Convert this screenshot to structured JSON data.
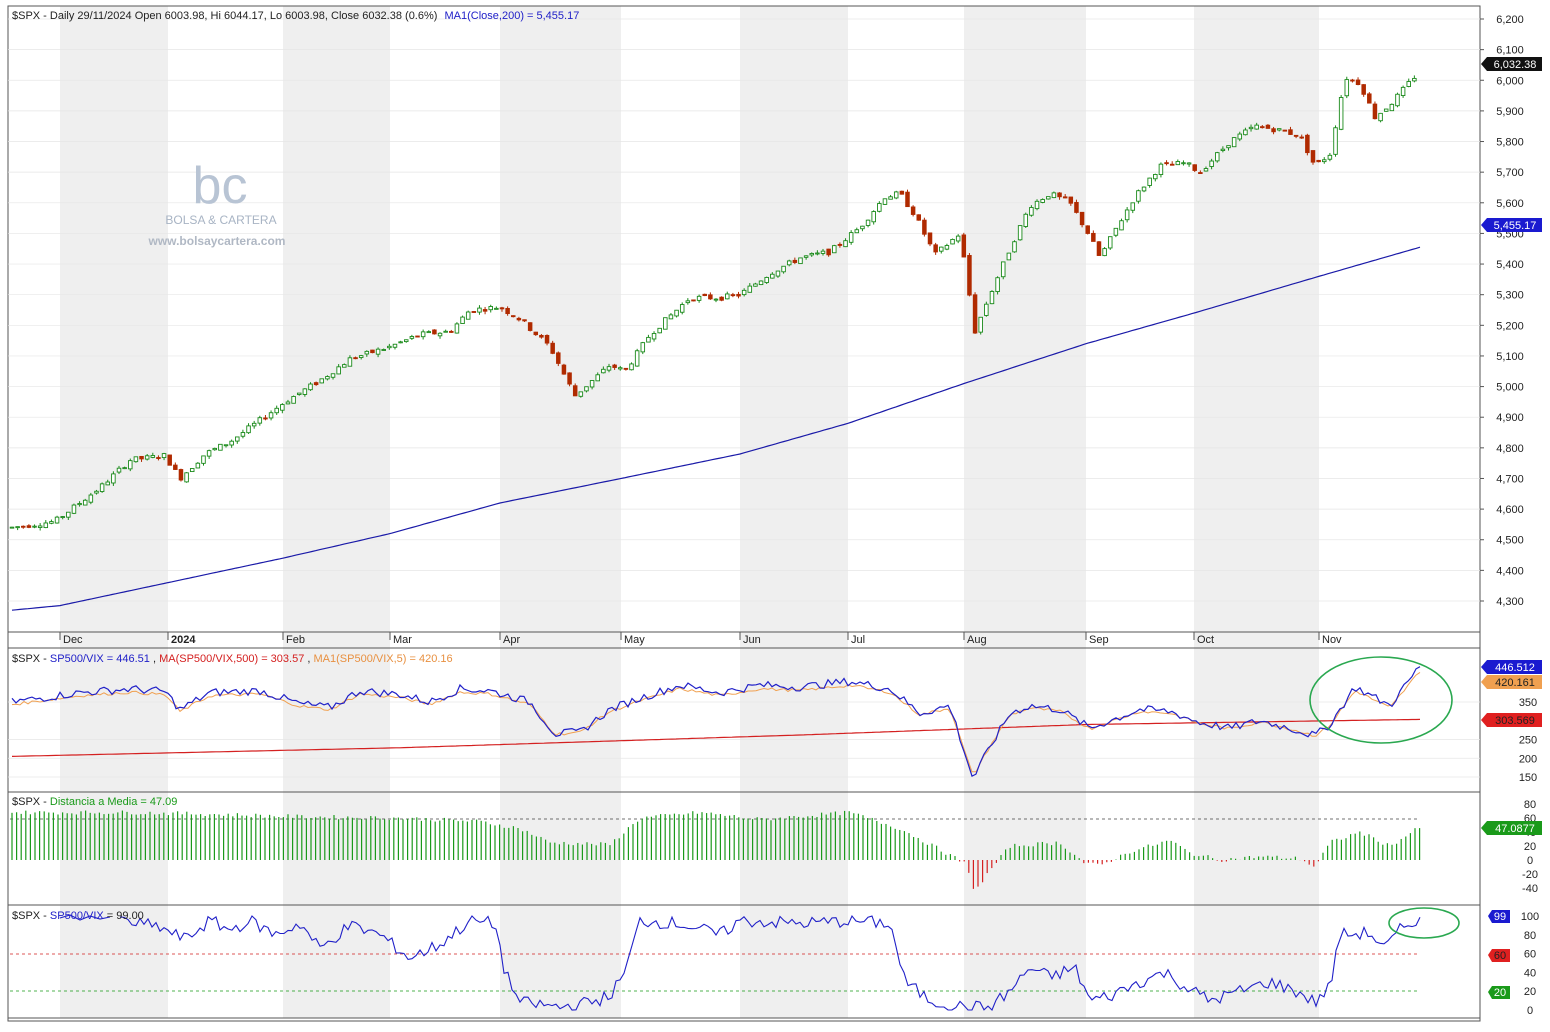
{
  "colors": {
    "price_line": "#1a1aa8",
    "candle_up": "#1a8a1a",
    "candle_down": "#b02a00",
    "ratio_line": "#2020c8",
    "ma500_line": "#d42020",
    "ma5_line": "#f0a050",
    "hist_pos": "#1a9a1a",
    "hist_neg": "#d42020",
    "rsi_line": "#2020c8",
    "circle": "#2aa850",
    "shade": "#efefef"
  },
  "main_panel": {
    "header_prefix": "$SPX - Daily 29/11/2024 Open 6003.98, Hi 6044.17, Lo 6003.98, Close 6032.38 (0.6%)",
    "header_ma": "MA1(Close,200) = 5,455.17",
    "price_tag": "6,032.38",
    "ma_tag": "5,455.17",
    "y_ticks": [
      "6,200",
      "6,100",
      "6,000",
      "5,900",
      "5,800",
      "5,700",
      "5,600",
      "5,500",
      "5,400",
      "5,300",
      "5,200",
      "5,100",
      "5,000",
      "4,900",
      "4,800",
      "4,700",
      "4,600",
      "4,500",
      "4,400",
      "4,300"
    ],
    "x_labels": [
      "Dec",
      "2024",
      "Feb",
      "Mar",
      "Apr",
      "May",
      "Jun",
      "Jul",
      "Aug",
      "Sep",
      "Oct",
      "Nov"
    ]
  },
  "logo": {
    "letters": "bc",
    "name": "BOLSA & CARTERA",
    "url": "www.bolsaycartera.com"
  },
  "ratio_panel": {
    "prefix": "$SPX - ",
    "series1": "SP500/VIX = 446.51",
    "sep1": ", ",
    "series2": "MA(SP500/VIX,500) = 303.57",
    "sep2": ", ",
    "series3": "MA1(SP500/VIX,5) = 420.16",
    "y_ticks": [
      "350",
      "250",
      "200",
      "150"
    ],
    "tag1": "446.512",
    "tag2": "420.161",
    "tag3": "303.569"
  },
  "dist_panel": {
    "prefix": "$SPX - ",
    "series": "Distancia a Media = 47.09",
    "y_ticks": [
      "80",
      "60",
      "40",
      "20",
      "0",
      "-20",
      "-40"
    ],
    "tag": "47.0877"
  },
  "rsi_panel": {
    "prefix": "$SPX - ",
    "series": "SP500/VIX",
    "suffix": " = 99.00",
    "y_ticks": [
      "100",
      "80",
      "60",
      "40",
      "20",
      "0"
    ],
    "tag_value": "99",
    "tag_upper": "60",
    "tag_lower": "20"
  },
  "chart_data": [
    {
      "type": "line",
      "title": "$SPX - Daily 29/11/2024 Open 6003.98, Hi 6044.17, Lo 6003.98, Close 6032.38 (0.6%)",
      "x": [
        "Dec",
        "2024",
        "Feb",
        "Mar",
        "Apr",
        "May",
        "Jun",
        "Jul",
        "Aug",
        "Sep",
        "Oct",
        "Nov",
        "29/11/2024"
      ],
      "series": [
        {
          "name": "$SPX",
          "values": [
            4560,
            4770,
            4920,
            5100,
            5250,
            5020,
            5280,
            5470,
            5380,
            5560,
            5720,
            5770,
            6032.38
          ]
        },
        {
          "name": "MA1(Close,200)",
          "values": [
            4280,
            4360,
            4440,
            4540,
            4640,
            4700,
            4780,
            4880,
            5010,
            5140,
            5260,
            5370,
            5455.17
          ]
        }
      ],
      "ylim": [
        4230,
        6240
      ]
    },
    {
      "type": "line",
      "x": [
        "Dec",
        "2024",
        "Feb",
        "Mar",
        "Apr",
        "May",
        "Jun",
        "Jul",
        "Aug",
        "Sep",
        "Oct",
        "Nov",
        "29/11/2024"
      ],
      "series": [
        {
          "name": "SP500/VIX",
          "values": [
            350,
            370,
            355,
            385,
            380,
            270,
            390,
            400,
            140,
            350,
            300,
            290,
            446.51
          ]
        },
        {
          "name": "MA(SP500/VIX,500)",
          "values": [
            205,
            220,
            228,
            238,
            245,
            255,
            262,
            272,
            283,
            292,
            297,
            300,
            303.57
          ]
        },
        {
          "name": "MA1(SP500/VIX,5)",
          "values": [
            350,
            360,
            365,
            375,
            370,
            285,
            380,
            395,
            190,
            330,
            300,
            300,
            420.16
          ]
        }
      ],
      "ylim": [
        120,
        470
      ]
    },
    {
      "type": "bar",
      "title": "Distancia a Media",
      "x": [
        "Dec",
        "2024",
        "Feb",
        "Mar",
        "Apr",
        "May",
        "Jun",
        "Jul",
        "Aug",
        "Sep",
        "Oct",
        "Nov",
        "29/11/2024"
      ],
      "series": [
        {
          "name": "Distancia a Media",
          "values": [
            68,
            68,
            66,
            60,
            58,
            22,
            55,
            68,
            5,
            12,
            28,
            3,
            47.09
          ]
        }
      ],
      "ylim": [
        -50,
        90
      ]
    },
    {
      "type": "line",
      "x": [
        "Dec",
        "2024",
        "Feb",
        "Mar",
        "Apr",
        "May",
        "Jun",
        "Jul",
        "Aug",
        "Sep",
        "Oct",
        "Nov",
        "29/11/2024"
      ],
      "series": [
        {
          "name": "SP500/VIX",
          "values": [
            95,
            90,
            75,
            60,
            90,
            10,
            95,
            95,
            5,
            40,
            25,
            15,
            99
          ]
        }
      ],
      "ylim": [
        -3,
        106
      ]
    }
  ]
}
